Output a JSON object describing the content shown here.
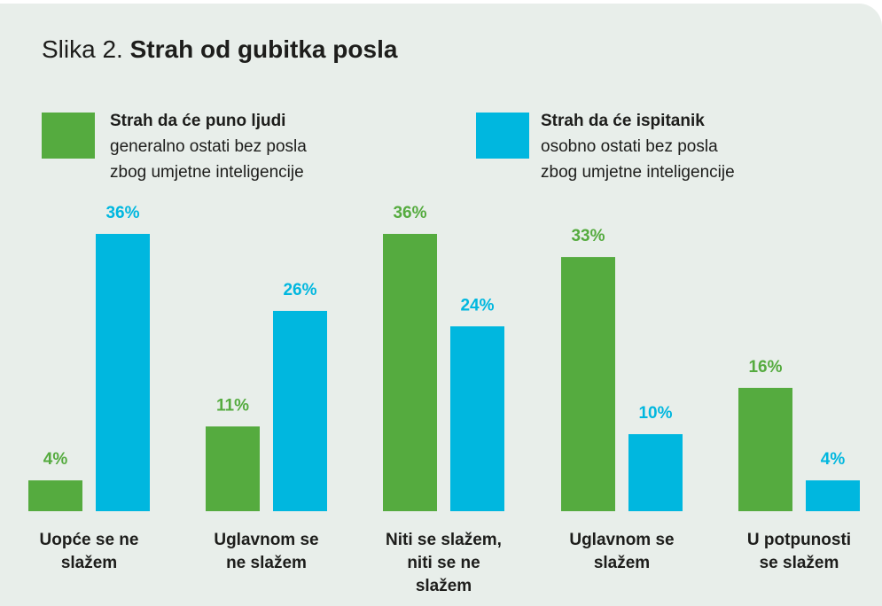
{
  "title": {
    "prefix": "Slika 2.",
    "main": "Strah od gubitka posla"
  },
  "legend": [
    {
      "bold": "Strah da će puno ljudi",
      "line2": "generalno ostati bez posla",
      "line3": "zbog umjetne inteligencije",
      "color": "#55ab3f"
    },
    {
      "bold": "Strah da će ispitanik",
      "line2": "osobno ostati bez posla",
      "line3": "zbog umjetne inteligencije",
      "color": "#00b7df"
    }
  ],
  "chart_data": {
    "type": "bar",
    "title": "Strah od gubitka posla",
    "categories": [
      "Uopće se ne\nslažem",
      "Uglavnom se\nne slažem",
      "Niti se slažem,\nniti se ne\nslažem",
      "Uglavnom se\nslažem",
      "U potpunosti\nse slažem"
    ],
    "series": [
      {
        "name": "Strah da će puno ljudi generalno ostati bez posla zbog umjetne inteligencije",
        "values": [
          4,
          11,
          36,
          33,
          16
        ],
        "color": "#55ab3f"
      },
      {
        "name": "Strah da će ispitanik osobno ostati bez posla zbog umjetne inteligencije",
        "values": [
          36,
          26,
          24,
          10,
          4
        ],
        "color": "#00b7df"
      }
    ],
    "value_suffix": "%",
    "ylim": [
      0,
      36
    ],
    "grid": false,
    "legend_position": "top"
  }
}
